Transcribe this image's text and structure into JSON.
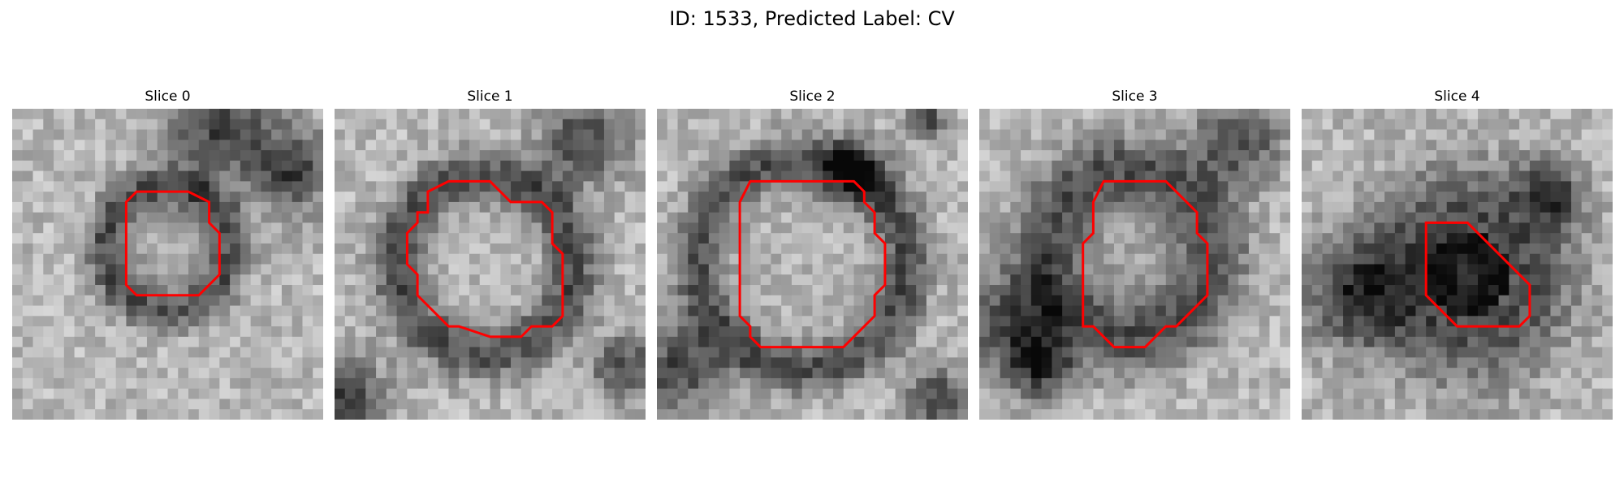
{
  "figure": {
    "title": "ID: 1533, Predicted Label: CV"
  },
  "panels": [
    {
      "title": "Slice 0"
    },
    {
      "title": "Slice 1"
    },
    {
      "title": "Slice 2"
    },
    {
      "title": "Slice 3"
    },
    {
      "title": "Slice 4"
    }
  ],
  "colors": {
    "contour": "#ff0000",
    "background": "#ffffff"
  }
}
